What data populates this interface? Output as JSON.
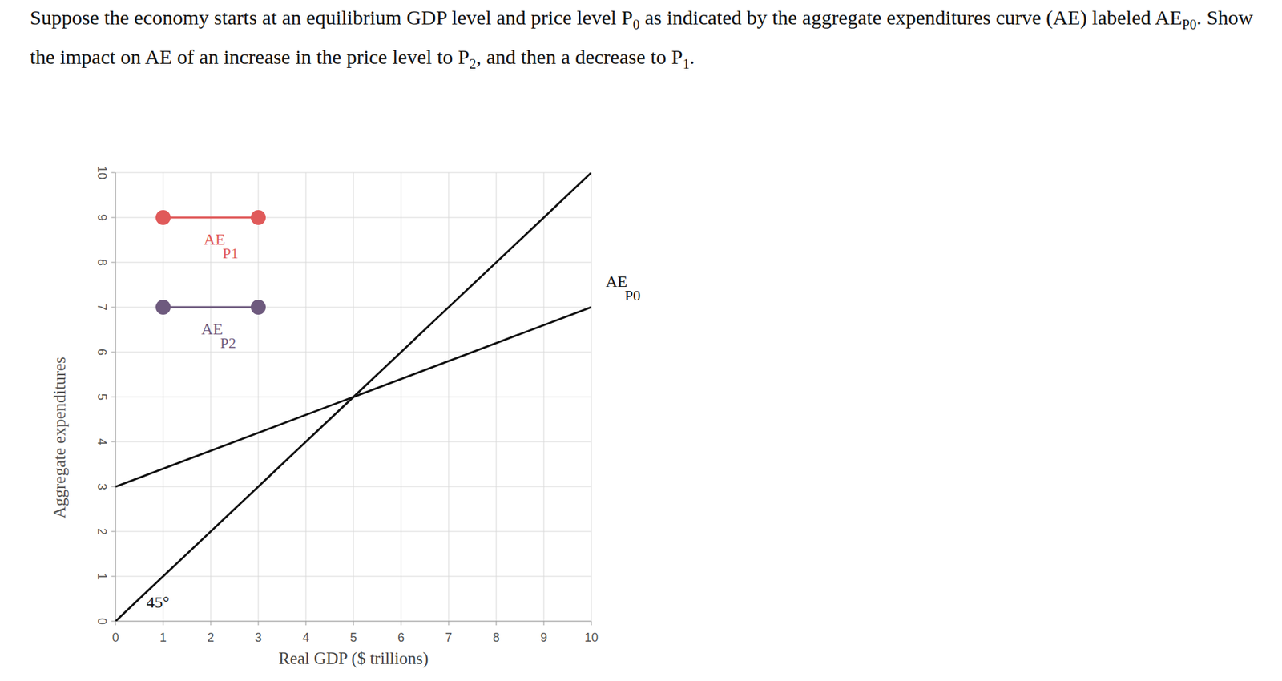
{
  "question": [
    {
      "text": "Suppose the economy starts at an equilibrium GDP level and price level P"
    },
    {
      "sub": "0"
    },
    {
      "text": " as indicated by the aggregate expenditures curve (AE) labeled AE"
    },
    {
      "sub": "P0"
    },
    {
      "text": ". Show the impact on AE of an increase in the price level to P"
    },
    {
      "sub": "2"
    },
    {
      "text": ", and then a decrease to P"
    },
    {
      "sub": "1"
    },
    {
      "text": "."
    }
  ],
  "chart_data": {
    "type": "line",
    "x_label": "Real GDP ($ trillions)",
    "y_label": "Aggregate expenditures",
    "xlim": [
      0,
      10
    ],
    "ylim": [
      0,
      10
    ],
    "xticks": [
      0,
      1,
      2,
      3,
      4,
      5,
      6,
      7,
      8,
      9,
      10
    ],
    "yticks": [
      0,
      1,
      2,
      3,
      4,
      5,
      6,
      7,
      8,
      9,
      10
    ],
    "grid": true,
    "series": [
      {
        "name": "45°",
        "color": "#111111",
        "x": [
          0,
          10
        ],
        "values": [
          0,
          10
        ],
        "label_x": 0.65,
        "label_y": 0.3
      },
      {
        "name": "AE",
        "subscript": "P0",
        "color": "#111111",
        "x": [
          0,
          10
        ],
        "values": [
          3,
          7
        ],
        "label_x": 10.3,
        "label_y": 7.45
      },
      {
        "name": "AE",
        "subscript": "P1",
        "color": "#e05a5a",
        "marker": "circle",
        "x": [
          1,
          3
        ],
        "values": [
          9,
          9
        ],
        "label_x": 1.85,
        "label_y": 8.4
      },
      {
        "name": "AE",
        "subscript": "P2",
        "color": "#6e5a7e",
        "marker": "circle",
        "x": [
          1,
          3
        ],
        "values": [
          7,
          7
        ],
        "label_x": 1.8,
        "label_y": 6.4
      }
    ]
  }
}
